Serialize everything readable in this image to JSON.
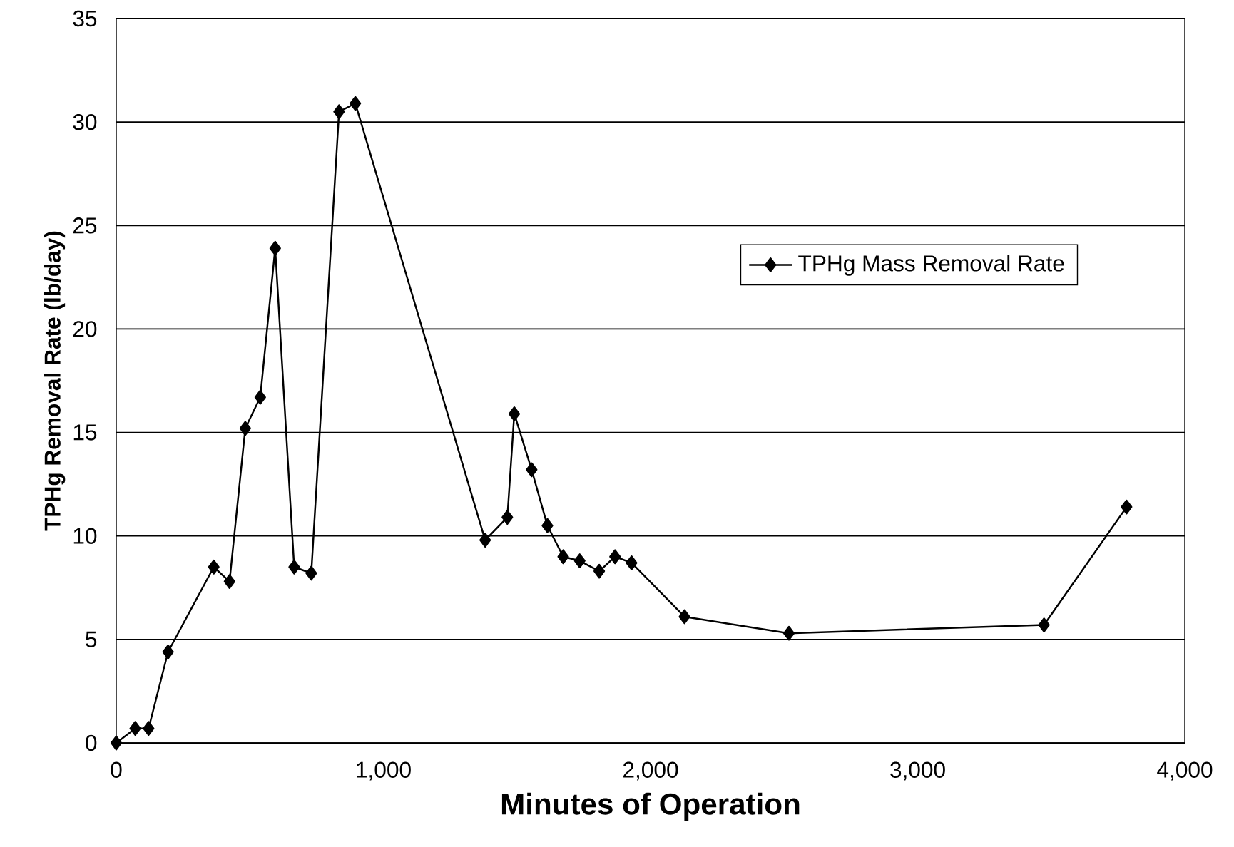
{
  "chart_data": {
    "type": "line",
    "xlabel": "Minutes of Operation",
    "ylabel": "TPHg Removal Rate (lb/day)",
    "x": [
      0,
      71,
      121,
      194,
      365,
      424,
      483,
      539,
      595,
      666,
      730,
      834,
      895,
      1381,
      1464,
      1490,
      1555,
      1614,
      1673,
      1735,
      1808,
      1867,
      1929,
      2127,
      2518,
      3473,
      3782
    ],
    "series": [
      {
        "name": "TPHg Mass Removal Rate",
        "color": "#000000",
        "values": [
          0,
          0.7,
          0.7,
          4.4,
          8.5,
          7.8,
          15.2,
          16.7,
          23.9,
          8.5,
          8.2,
          30.5,
          30.9,
          9.8,
          10.9,
          15.9,
          13.2,
          10.5,
          9.0,
          8.8,
          8.3,
          9.0,
          8.7,
          6.1,
          5.3,
          5.7,
          11.4
        ]
      }
    ],
    "xlim": [
      0,
      4000
    ],
    "ylim": [
      0,
      35
    ],
    "xticks": [
      0,
      {
        "value": 1000,
        "label": "1,000"
      },
      {
        "value": 2000,
        "label": "2,000"
      },
      {
        "value": 3000,
        "label": "3,000"
      },
      {
        "value": 4000,
        "label": "4,000"
      }
    ],
    "yticks": [
      0,
      5,
      10,
      15,
      20,
      25,
      30,
      35
    ],
    "grid": "y",
    "legend": "right",
    "marker": "diamond",
    "line_style": "solid"
  }
}
